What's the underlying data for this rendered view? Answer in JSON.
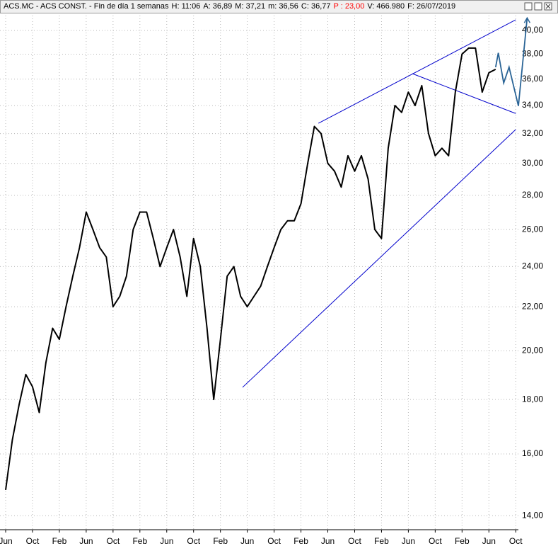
{
  "header": {
    "items": [
      {
        "text": "ACS.MC - ACS CONST. - Fin de día 1 semanas",
        "color": "#000000"
      },
      {
        "text": "H: 11:06",
        "color": "#000000"
      },
      {
        "text": "A: 36,89",
        "color": "#000000"
      },
      {
        "text": "M: 37,21",
        "color": "#000000"
      },
      {
        "text": "m: 36,56",
        "color": "#000000"
      },
      {
        "text": "C: 36,77",
        "color": "#000000"
      },
      {
        "text": "P : 23,00",
        "color": "#ff0000"
      },
      {
        "text": "V: 466.980",
        "color": "#000000"
      },
      {
        "text": "F: 26/07/2019",
        "color": "#000000"
      }
    ]
  },
  "chart_data": {
    "type": "line",
    "log_scale": true,
    "grid": true,
    "color": "#000000",
    "categories": [
      "Jun",
      null,
      null,
      null,
      "Oct",
      null,
      null,
      null,
      "Feb",
      null,
      null,
      null,
      "Jun",
      null,
      null,
      null,
      "Oct",
      null,
      null,
      null,
      "Feb",
      null,
      null,
      null,
      "Jun",
      null,
      null,
      null,
      "Oct",
      null,
      null,
      null,
      "Feb",
      null,
      null,
      null,
      "Jun",
      null,
      null,
      null,
      "Oct",
      null,
      null,
      null,
      "Feb",
      null,
      null,
      null,
      "Jun",
      null,
      null,
      null,
      "Oct",
      null,
      null,
      null,
      "Feb",
      null,
      null,
      null,
      "Jun",
      null,
      null,
      null,
      "Oct",
      null,
      null,
      null,
      "Feb",
      null,
      null,
      null,
      "Jun",
      null,
      null,
      null,
      "Oct"
    ],
    "values": [
      14.8,
      16.5,
      17.8,
      19,
      18.5,
      17.5,
      19.5,
      21,
      20.5,
      22,
      23.5,
      25,
      27,
      26,
      25,
      24.5,
      22,
      22.5,
      23.5,
      26,
      27,
      27,
      25.5,
      24,
      25,
      26,
      24.5,
      22.5,
      25.5,
      24,
      21,
      18,
      20.5,
      23.5,
      24,
      22.5,
      22,
      22.5,
      23,
      24,
      25,
      26,
      26.5,
      26.5,
      27.5,
      30,
      32.5,
      32,
      30,
      29.5,
      28.5,
      30.5,
      29.5,
      30.5,
      29,
      26,
      25.5,
      31,
      34,
      33.5,
      35,
      34,
      35.5,
      32,
      30.5,
      31,
      30.5,
      35,
      38,
      38.5,
      38.5,
      35,
      36.5,
      36.77,
      null,
      null,
      null
    ],
    "ylim": [
      13.58,
      41.56
    ],
    "yticks": [
      {
        "value": 14,
        "label": "14,00"
      },
      {
        "value": 16,
        "label": "16,00"
      },
      {
        "value": 18,
        "label": "18,00"
      },
      {
        "value": 20,
        "label": "20,00"
      },
      {
        "value": 22,
        "label": "22,00"
      },
      {
        "value": 24,
        "label": "24,00"
      },
      {
        "value": 26,
        "label": "26,00"
      },
      {
        "value": 28,
        "label": "28,00"
      },
      {
        "value": 30,
        "label": "30,00"
      },
      {
        "value": 32,
        "label": "32,00"
      },
      {
        "value": 34,
        "label": "34,00"
      },
      {
        "value": 36,
        "label": "36,00"
      },
      {
        "value": 38,
        "label": "38,00"
      },
      {
        "value": 40,
        "label": "40,00"
      }
    ],
    "trendlines": [
      {
        "color": "#0000cc",
        "x": [
          46.6,
          76.0
        ],
        "y": [
          32.72,
          40.93
        ]
      },
      {
        "color": "#0000cc",
        "x": [
          35.3,
          76.0
        ],
        "y": [
          18.48,
          32.28
        ]
      },
      {
        "color": "#0000cc",
        "x": [
          60.6,
          76.0
        ],
        "y": [
          36.43,
          33.42
        ]
      }
    ],
    "projection": {
      "color": "#2a6496",
      "x": [
        73.0,
        73.4,
        74.2,
        75.0,
        76.4,
        77.7
      ],
      "y": [
        36.94,
        38.1,
        35.7,
        36.94,
        33.97,
        41.1
      ]
    }
  }
}
